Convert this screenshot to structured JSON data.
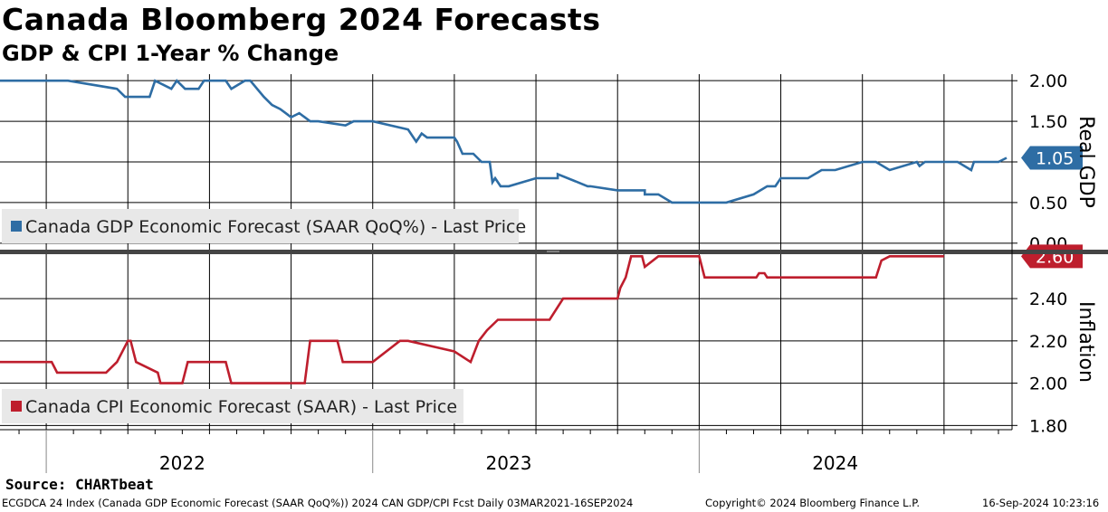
{
  "title": "Canada Bloomberg 2024 Forecasts",
  "subtitle": "GDP & CPI 1-Year % Change",
  "source": "Source: CHARTbeat",
  "footer": {
    "left": "ECGDCA 24 Index (Canada GDP Economic Forecast (SAAR QoQ%)) 2024 CAN GDP/CPI Fcst  Daily 03MAR2021-16SEP2024",
    "center": "Copyright© 2024 Bloomberg Finance L.P.",
    "right": "16-Sep-2024 10:23:16"
  },
  "colors": {
    "gdp": "#2e6da4",
    "cpi": "#be1e2d",
    "axis": "#000000",
    "legend_bg": "#e8e8e8"
  },
  "chart_data": [
    {
      "type": "line",
      "name": "gdp-panel",
      "ylabel": "Real GDP",
      "ylim": [
        -0.08,
        2.08
      ],
      "yticks": [
        2.0,
        1.5,
        1.0,
        0.5,
        0.0
      ],
      "ytick_labels": [
        "2.00",
        "1.50",
        "1.00",
        "0.50",
        "0.00"
      ],
      "x_unit": "months since Jan 2022",
      "xlim": [
        -1.7,
        35.5
      ],
      "year_labels": [
        "2022",
        "2023",
        "2024"
      ],
      "year_centers": [
        5,
        17,
        29
      ],
      "last_value_label": "1.05",
      "legend": "Canada GDP Economic Forecast (SAAR QoQ%) - Last Price",
      "series": [
        {
          "name": "Canada GDP Economic Forecast (SAAR QoQ%) - Last Price",
          "x": [
            -1.7,
            0.8,
            2.6,
            2.9,
            3.8,
            4.0,
            4.6,
            4.8,
            5.1,
            5.6,
            5.8,
            6.4,
            6.6,
            6.8,
            7.3,
            7.5,
            8.0,
            8.3,
            8.6,
            8.8,
            9.0,
            9.3,
            9.5,
            9.7,
            10.0,
            11.0,
            11.3,
            12.0,
            13.3,
            13.5,
            13.6,
            13.8,
            14.0,
            15.0,
            15.1,
            15.3,
            15.7,
            16.0,
            16.3,
            16.4,
            16.5,
            16.7,
            17.0,
            18.0,
            18.8,
            18.8,
            19.9,
            20.0,
            21.0,
            22.0,
            22.0,
            22.5,
            23.0,
            23.3,
            24.0,
            25.0,
            26.0,
            26.5,
            26.6,
            26.8,
            27.0,
            27.5,
            28.0,
            28.5,
            29.0,
            30.0,
            30.5,
            31.0,
            32.0,
            32.1,
            32.3,
            32.5,
            32.7,
            33.0,
            33.5,
            34.0,
            34.1,
            34.3,
            34.5,
            35.0,
            35.3
          ],
          "y": [
            2.0,
            2.0,
            1.9,
            1.8,
            1.8,
            2.0,
            1.9,
            2.0,
            1.9,
            1.9,
            2.0,
            2.0,
            2.0,
            1.9,
            2.0,
            2.0,
            1.8,
            1.7,
            1.65,
            1.6,
            1.55,
            1.6,
            1.55,
            1.5,
            1.5,
            1.45,
            1.5,
            1.5,
            1.4,
            1.3,
            1.25,
            1.35,
            1.3,
            1.3,
            1.25,
            1.1,
            1.1,
            1.0,
            1.0,
            0.75,
            0.8,
            0.7,
            0.7,
            0.8,
            0.8,
            0.85,
            0.7,
            0.7,
            0.65,
            0.65,
            0.6,
            0.6,
            0.5,
            0.5,
            0.5,
            0.5,
            0.6,
            0.7,
            0.7,
            0.7,
            0.8,
            0.8,
            0.8,
            0.9,
            0.9,
            1.0,
            1.0,
            0.9,
            1.0,
            0.95,
            1.0,
            1.0,
            1.0,
            1.0,
            1.0,
            0.9,
            1.0,
            1.0,
            1.0,
            1.0,
            1.05
          ]
        }
      ]
    },
    {
      "type": "line",
      "name": "cpi-panel",
      "ylabel": "Inflation",
      "ylim": [
        1.78,
        2.61
      ],
      "yticks": [
        2.4,
        2.2,
        2.0,
        1.8
      ],
      "ytick_labels": [
        "2.40",
        "2.20",
        "2.00",
        "1.80"
      ],
      "x_unit": "months since Jan 2022",
      "xlim": [
        -1.7,
        35.5
      ],
      "last_value_label": "2.60",
      "legend": "Canada CPI Economic Forecast (SAAR) - Last Price",
      "series": [
        {
          "name": "Canada CPI Economic Forecast (SAAR) - Last Price",
          "x": [
            -1.7,
            0.2,
            0.4,
            2.2,
            2.6,
            3.0,
            3.1,
            3.3,
            4.1,
            4.2,
            5.0,
            5.2,
            5.5,
            6.6,
            6.8,
            9.5,
            9.7,
            10.0,
            10.7,
            10.9,
            12.0,
            13.0,
            13.1,
            13.3,
            15.0,
            15.6,
            15.9,
            16.2,
            16.6,
            17.0,
            18.5,
            19.0,
            20.0,
            21.0,
            21.1,
            21.3,
            21.5,
            21.9,
            22.0,
            22.5,
            23.0,
            23.4,
            23.7,
            24.0,
            24.2,
            25.0,
            25.5,
            26.1,
            26.2,
            26.4,
            26.5,
            28.0,
            29.0,
            30.2,
            30.5,
            30.7,
            31.0,
            33.0
          ],
          "y": [
            2.1,
            2.1,
            2.05,
            2.05,
            2.1,
            2.2,
            2.2,
            2.1,
            2.05,
            2.0,
            2.0,
            2.1,
            2.1,
            2.1,
            2.0,
            2.0,
            2.2,
            2.2,
            2.2,
            2.1,
            2.1,
            2.2,
            2.2,
            2.2,
            2.15,
            2.1,
            2.2,
            2.25,
            2.3,
            2.3,
            2.3,
            2.4,
            2.4,
            2.4,
            2.45,
            2.5,
            2.6,
            2.6,
            2.55,
            2.6,
            2.6,
            2.6,
            2.6,
            2.6,
            2.5,
            2.5,
            2.5,
            2.5,
            2.52,
            2.52,
            2.5,
            2.5,
            2.5,
            2.5,
            2.5,
            2.58,
            2.6,
            2.6
          ]
        }
      ]
    }
  ]
}
